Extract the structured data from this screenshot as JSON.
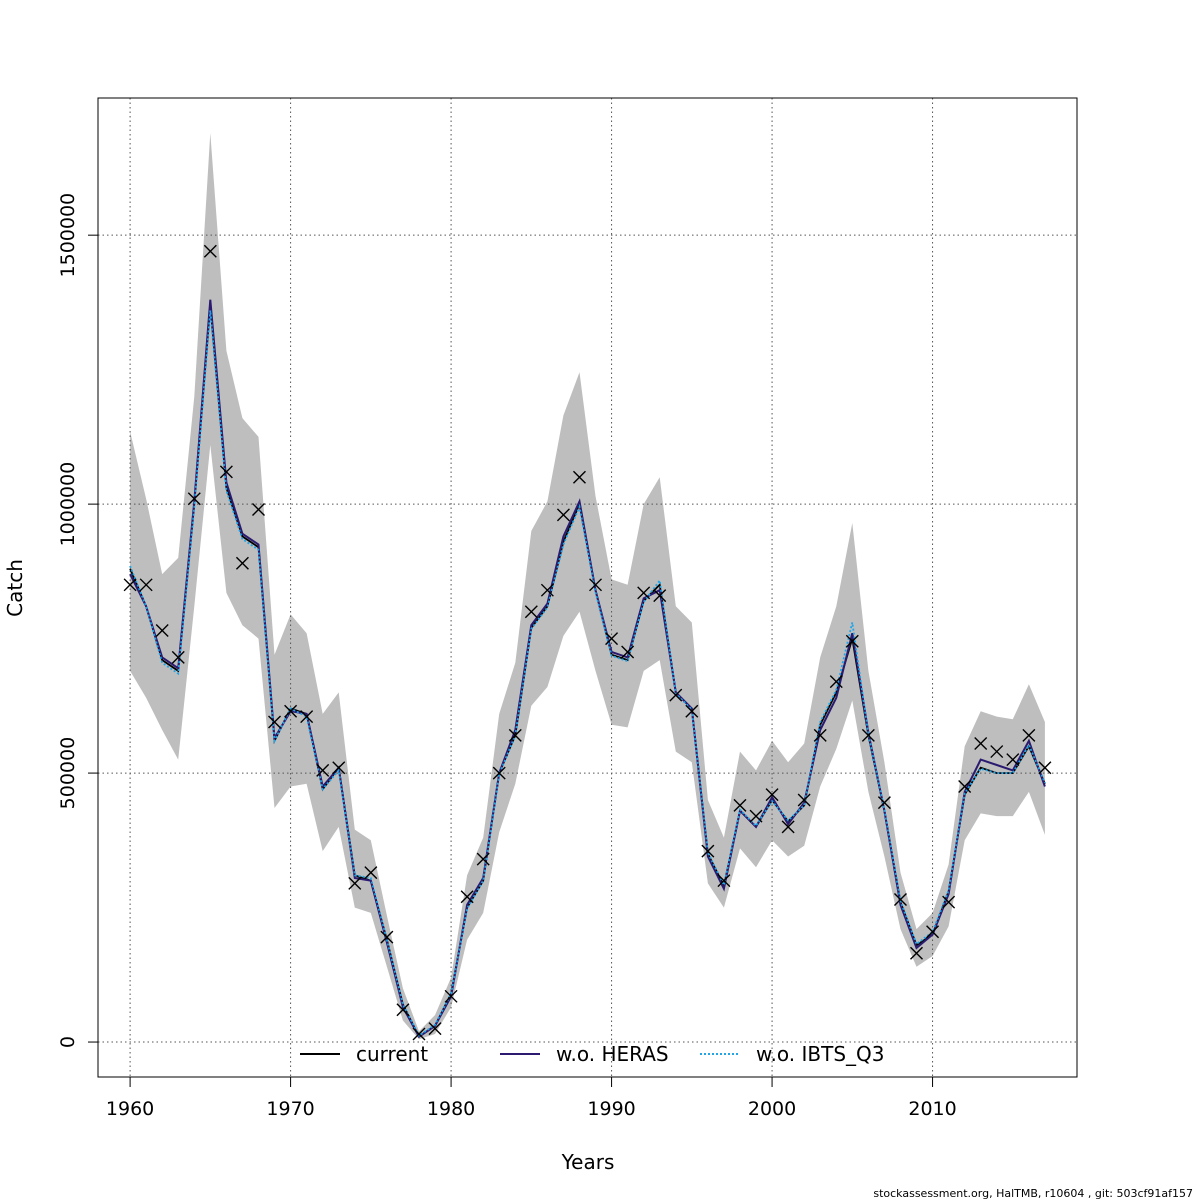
{
  "chart_data": {
    "type": "line",
    "xlabel": "Years",
    "ylabel": "Catch",
    "xlim": [
      1958,
      2019
    ],
    "ylim": [
      -65000,
      1755000
    ],
    "xticks": [
      1960,
      1970,
      1980,
      1990,
      2000,
      2010
    ],
    "yticks": [
      0,
      500000,
      1000000,
      1500000
    ],
    "ytick_labels": [
      "0",
      "500000",
      "1000000",
      "1500000"
    ],
    "grid": true,
    "legend_position": "bottom",
    "x": [
      1960,
      1961,
      1962,
      1963,
      1964,
      1965,
      1966,
      1967,
      1968,
      1969,
      1970,
      1971,
      1972,
      1973,
      1974,
      1975,
      1976,
      1977,
      1978,
      1979,
      1980,
      1981,
      1982,
      1983,
      1984,
      1985,
      1986,
      1987,
      1988,
      1989,
      1990,
      1991,
      1992,
      1993,
      1994,
      1995,
      1996,
      1997,
      1998,
      1999,
      2000,
      2001,
      2002,
      2003,
      2004,
      2005,
      2006,
      2007,
      2008,
      2009,
      2010,
      2011,
      2012,
      2013,
      2014,
      2015,
      2016,
      2017
    ],
    "series": [
      {
        "name": "current",
        "color": "#000000",
        "style": "solid",
        "values": [
          880000,
          810000,
          710000,
          690000,
          1000000,
          1370000,
          1030000,
          940000,
          920000,
          560000,
          620000,
          610000,
          470000,
          510000,
          310000,
          300000,
          190000,
          70000,
          10000,
          30000,
          90000,
          250000,
          300000,
          500000,
          570000,
          770000,
          810000,
          930000,
          1000000,
          840000,
          720000,
          710000,
          820000,
          850000,
          650000,
          620000,
          350000,
          290000,
          430000,
          400000,
          450000,
          410000,
          440000,
          590000,
          650000,
          750000,
          570000,
          430000,
          260000,
          180000,
          200000,
          280000,
          460000,
          510000,
          500000,
          500000,
          550000,
          480000
        ]
      },
      {
        "name": "w.o. HERAS",
        "color": "#2b1a70",
        "style": "solid",
        "values": [
          870000,
          810000,
          715000,
          695000,
          1005000,
          1380000,
          1040000,
          945000,
          925000,
          565000,
          615000,
          610000,
          475000,
          510000,
          305000,
          300000,
          185000,
          65000,
          10000,
          30000,
          85000,
          255000,
          305000,
          500000,
          580000,
          775000,
          815000,
          940000,
          1005000,
          840000,
          725000,
          715000,
          825000,
          840000,
          650000,
          620000,
          345000,
          285000,
          430000,
          400000,
          455000,
          405000,
          445000,
          580000,
          640000,
          760000,
          575000,
          430000,
          255000,
          175000,
          200000,
          275000,
          465000,
          525000,
          515000,
          505000,
          560000,
          475000
        ]
      },
      {
        "name": "w.o. IBTS_Q3",
        "color": "#1ea6e8",
        "style": "dotted",
        "values": [
          885000,
          810000,
          705000,
          685000,
          995000,
          1360000,
          1025000,
          935000,
          915000,
          560000,
          620000,
          605000,
          470000,
          505000,
          310000,
          305000,
          190000,
          70000,
          12000,
          32000,
          90000,
          248000,
          300000,
          498000,
          570000,
          768000,
          808000,
          925000,
          995000,
          836000,
          718000,
          708000,
          818000,
          858000,
          648000,
          618000,
          352000,
          292000,
          432000,
          402000,
          448000,
          412000,
          440000,
          595000,
          655000,
          780000,
          572000,
          432000,
          262000,
          182000,
          205000,
          282000,
          462000,
          508000,
          500000,
          500000,
          552000,
          482000
        ]
      }
    ],
    "confidence_band": {
      "color": "#bebebe",
      "lower": [
        690000,
        640000,
        580000,
        525000,
        810000,
        1110000,
        835000,
        775000,
        750000,
        435000,
        475000,
        480000,
        355000,
        400000,
        250000,
        240000,
        140000,
        40000,
        5000,
        15000,
        65000,
        190000,
        240000,
        390000,
        480000,
        625000,
        660000,
        755000,
        800000,
        690000,
        590000,
        585000,
        690000,
        710000,
        540000,
        520000,
        295000,
        250000,
        360000,
        325000,
        375000,
        345000,
        365000,
        475000,
        545000,
        635000,
        465000,
        345000,
        210000,
        140000,
        160000,
        215000,
        375000,
        425000,
        420000,
        420000,
        465000,
        385000
      ],
      "upper": [
        1135000,
        1010000,
        870000,
        900000,
        1200000,
        1690000,
        1285000,
        1160000,
        1125000,
        720000,
        795000,
        760000,
        610000,
        650000,
        395000,
        375000,
        235000,
        100000,
        20000,
        50000,
        120000,
        310000,
        380000,
        610000,
        705000,
        950000,
        1005000,
        1165000,
        1245000,
        1015000,
        860000,
        850000,
        1000000,
        1050000,
        810000,
        780000,
        450000,
        380000,
        540000,
        505000,
        560000,
        520000,
        555000,
        715000,
        810000,
        965000,
        690000,
        520000,
        315000,
        210000,
        240000,
        330000,
        550000,
        615000,
        605000,
        600000,
        665000,
        595000
      ]
    },
    "observed_marker": "x",
    "observed": [
      850000,
      850000,
      765000,
      715000,
      1010000,
      1470000,
      1060000,
      890000,
      990000,
      595000,
      615000,
      605000,
      505000,
      510000,
      295000,
      315000,
      195000,
      60000,
      15000,
      25000,
      85000,
      270000,
      340000,
      500000,
      570000,
      800000,
      840000,
      980000,
      1050000,
      850000,
      750000,
      725000,
      835000,
      830000,
      645000,
      615000,
      355000,
      300000,
      440000,
      420000,
      460000,
      400000,
      450000,
      570000,
      670000,
      745000,
      570000,
      445000,
      265000,
      165000,
      205000,
      260000,
      475000,
      555000,
      540000,
      525000,
      570000,
      510000
    ],
    "footer": "stockassessment.org, HalTMB, r10604 , git: 503cf91af157"
  }
}
